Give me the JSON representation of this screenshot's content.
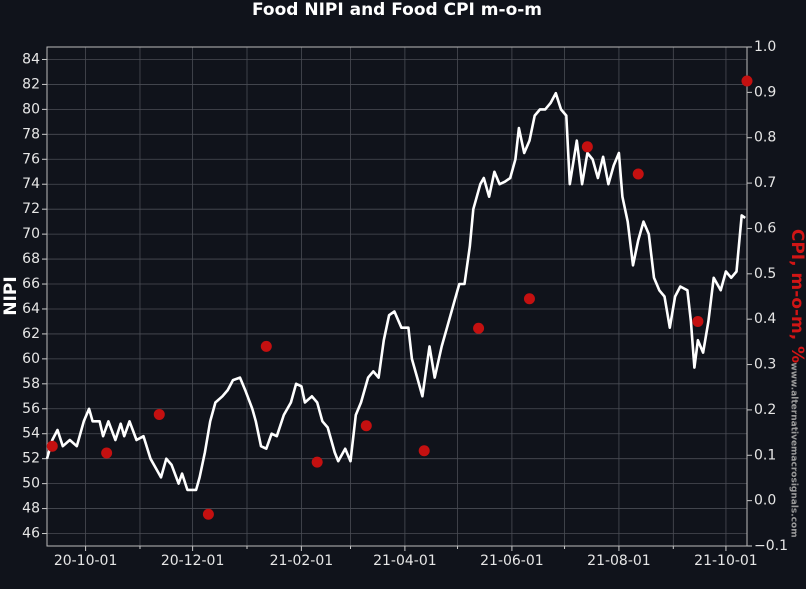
{
  "chart_data": {
    "type": "line",
    "title": "Food NIPI and Food CPI m-o-m",
    "ylabel": "NIPI",
    "y2label": "CPI, m-o-m, %",
    "watermark": "www.alternativemacrosignals.com",
    "xlim": [
      "2020-09-09",
      "2021-10-13"
    ],
    "xticks": [
      {
        "value": "2020-10-01",
        "label": "20-10-01"
      },
      {
        "value": "2020-12-01",
        "label": "20-12-01"
      },
      {
        "value": "2021-02-01",
        "label": "21-02-01"
      },
      {
        "value": "2021-04-01",
        "label": "21-04-01"
      },
      {
        "value": "2021-06-01",
        "label": "21-06-01"
      },
      {
        "value": "2021-08-01",
        "label": "21-08-01"
      },
      {
        "value": "2021-10-01",
        "label": "21-10-01"
      }
    ],
    "xminor": [
      "2020-11-01",
      "2021-01-01",
      "2021-03-01",
      "2021-05-01",
      "2021-07-01",
      "2021-09-01"
    ],
    "ylim": [
      45,
      85
    ],
    "yticks": [
      46,
      48,
      50,
      52,
      54,
      56,
      58,
      60,
      62,
      64,
      66,
      68,
      70,
      72,
      74,
      76,
      78,
      80,
      82,
      84
    ],
    "y2lim": [
      -0.1,
      1.0
    ],
    "y2ticks": [
      {
        "value": -0.1,
        "label": "−0.1"
      },
      {
        "value": 0,
        "label": "0.0"
      },
      0.1,
      0.2,
      0.3,
      0.4,
      0.5,
      0.6,
      0.7,
      0.8,
      0.9,
      {
        "value": 1,
        "label": "1.0"
      }
    ],
    "grid": true,
    "series": [
      {
        "name": "NIPI",
        "type": "line",
        "color": "#ffffff",
        "x": [
          "2020-09-09",
          "2020-09-12",
          "2020-09-15",
          "2020-09-18",
          "2020-09-22",
          "2020-09-26",
          "2020-09-30",
          "2020-10-03",
          "2020-10-05",
          "2020-10-09",
          "2020-10-11",
          "2020-10-14",
          "2020-10-18",
          "2020-10-21",
          "2020-10-23",
          "2020-10-26",
          "2020-10-30",
          "2020-11-03",
          "2020-11-07",
          "2020-11-11",
          "2020-11-13",
          "2020-11-16",
          "2020-11-19",
          "2020-11-23",
          "2020-11-25",
          "2020-11-28",
          "2020-12-03",
          "2020-12-05",
          "2020-12-08",
          "2020-12-11",
          "2020-12-14",
          "2020-12-18",
          "2020-12-21",
          "2020-12-24",
          "2020-12-28",
          "2020-12-31",
          "2021-01-04",
          "2021-01-06",
          "2021-01-09",
          "2021-01-12",
          "2021-01-15",
          "2021-01-18",
          "2021-01-22",
          "2021-01-26",
          "2021-01-29",
          "2021-02-01",
          "2021-02-03",
          "2021-02-07",
          "2021-02-10",
          "2021-02-13",
          "2021-02-16",
          "2021-02-20",
          "2021-02-22",
          "2021-02-26",
          "2021-03-01",
          "2021-03-04",
          "2021-03-07",
          "2021-03-11",
          "2021-03-14",
          "2021-03-17",
          "2021-03-20",
          "2021-03-23",
          "2021-03-26",
          "2021-03-30",
          "2021-04-03",
          "2021-04-05",
          "2021-04-08",
          "2021-04-11",
          "2021-04-15",
          "2021-04-18",
          "2021-04-22",
          "2021-04-25",
          "2021-04-29",
          "2021-05-02",
          "2021-05-05",
          "2021-05-08",
          "2021-05-10",
          "2021-05-14",
          "2021-05-16",
          "2021-05-19",
          "2021-05-22",
          "2021-05-25",
          "2021-05-28",
          "2021-05-31",
          "2021-06-03",
          "2021-06-05",
          "2021-06-08",
          "2021-06-11",
          "2021-06-14",
          "2021-06-17",
          "2021-06-20",
          "2021-06-23",
          "2021-06-26",
          "2021-06-29",
          "2021-07-02",
          "2021-07-04",
          "2021-07-08",
          "2021-07-11",
          "2021-07-14",
          "2021-07-17",
          "2021-07-20",
          "2021-07-23",
          "2021-07-26",
          "2021-07-29",
          "2021-08-01",
          "2021-08-03",
          "2021-08-06",
          "2021-08-09",
          "2021-08-12",
          "2021-08-15",
          "2021-08-18",
          "2021-08-21",
          "2021-08-24",
          "2021-08-27",
          "2021-08-30",
          "2021-09-02",
          "2021-09-05",
          "2021-09-09",
          "2021-09-11",
          "2021-09-13",
          "2021-09-15",
          "2021-09-18",
          "2021-09-21",
          "2021-09-24",
          "2021-09-28",
          "2021-10-01",
          "2021-10-04",
          "2021-10-07",
          "2021-10-10",
          "2021-10-12"
        ],
        "values": [
          52,
          53.5,
          54.3,
          53,
          53.5,
          53,
          55,
          56,
          55,
          55,
          53.8,
          55,
          53.5,
          54.8,
          53.8,
          55,
          53.5,
          53.8,
          52,
          51,
          50.5,
          52,
          51.5,
          50,
          50.8,
          49.5,
          49.5,
          50.5,
          52.5,
          55,
          56.5,
          57,
          57.5,
          58.3,
          58.5,
          57.5,
          56,
          55,
          53,
          52.8,
          54,
          53.8,
          55.5,
          56.5,
          58,
          57.8,
          56.5,
          57,
          56.5,
          55,
          54.5,
          52.5,
          51.8,
          52.8,
          51.8,
          55.5,
          56.5,
          58.5,
          59,
          58.5,
          61.5,
          63.5,
          63.8,
          62.5,
          62.5,
          60,
          58.5,
          57,
          61,
          58.5,
          61,
          62.5,
          64.5,
          66,
          66,
          69,
          72,
          74,
          74.5,
          73,
          75,
          74,
          74.2,
          74.5,
          76,
          78.5,
          76.5,
          77.5,
          79.5,
          80,
          80,
          80.5,
          81.3,
          80,
          79.5,
          74,
          77.5,
          74,
          76.5,
          76,
          74.5,
          76.2,
          74,
          75.5,
          76.5,
          73,
          71,
          67.5,
          69.5,
          71,
          70,
          66.5,
          65.5,
          65,
          62.5,
          65,
          65.8,
          65.5,
          63,
          59.3,
          61.5,
          60.5,
          63,
          66.5,
          65.5,
          67,
          66.5,
          67,
          71.5,
          71.3
        ]
      },
      {
        "name": "CPI, m-o-m",
        "type": "scatter",
        "axis": "y2",
        "color": "#c41010",
        "x": [
          "2020-09-12",
          "2020-10-13",
          "2020-11-12",
          "2020-12-10",
          "2021-01-12",
          "2021-02-10",
          "2021-03-10",
          "2021-04-12",
          "2021-05-13",
          "2021-06-11",
          "2021-07-14",
          "2021-08-12",
          "2021-09-15",
          "2021-10-13"
        ],
        "values": [
          0.12,
          0.105,
          0.19,
          -0.03,
          0.34,
          0.085,
          0.165,
          0.11,
          0.38,
          0.445,
          0.78,
          0.72,
          0.395,
          0.925
        ]
      }
    ]
  }
}
